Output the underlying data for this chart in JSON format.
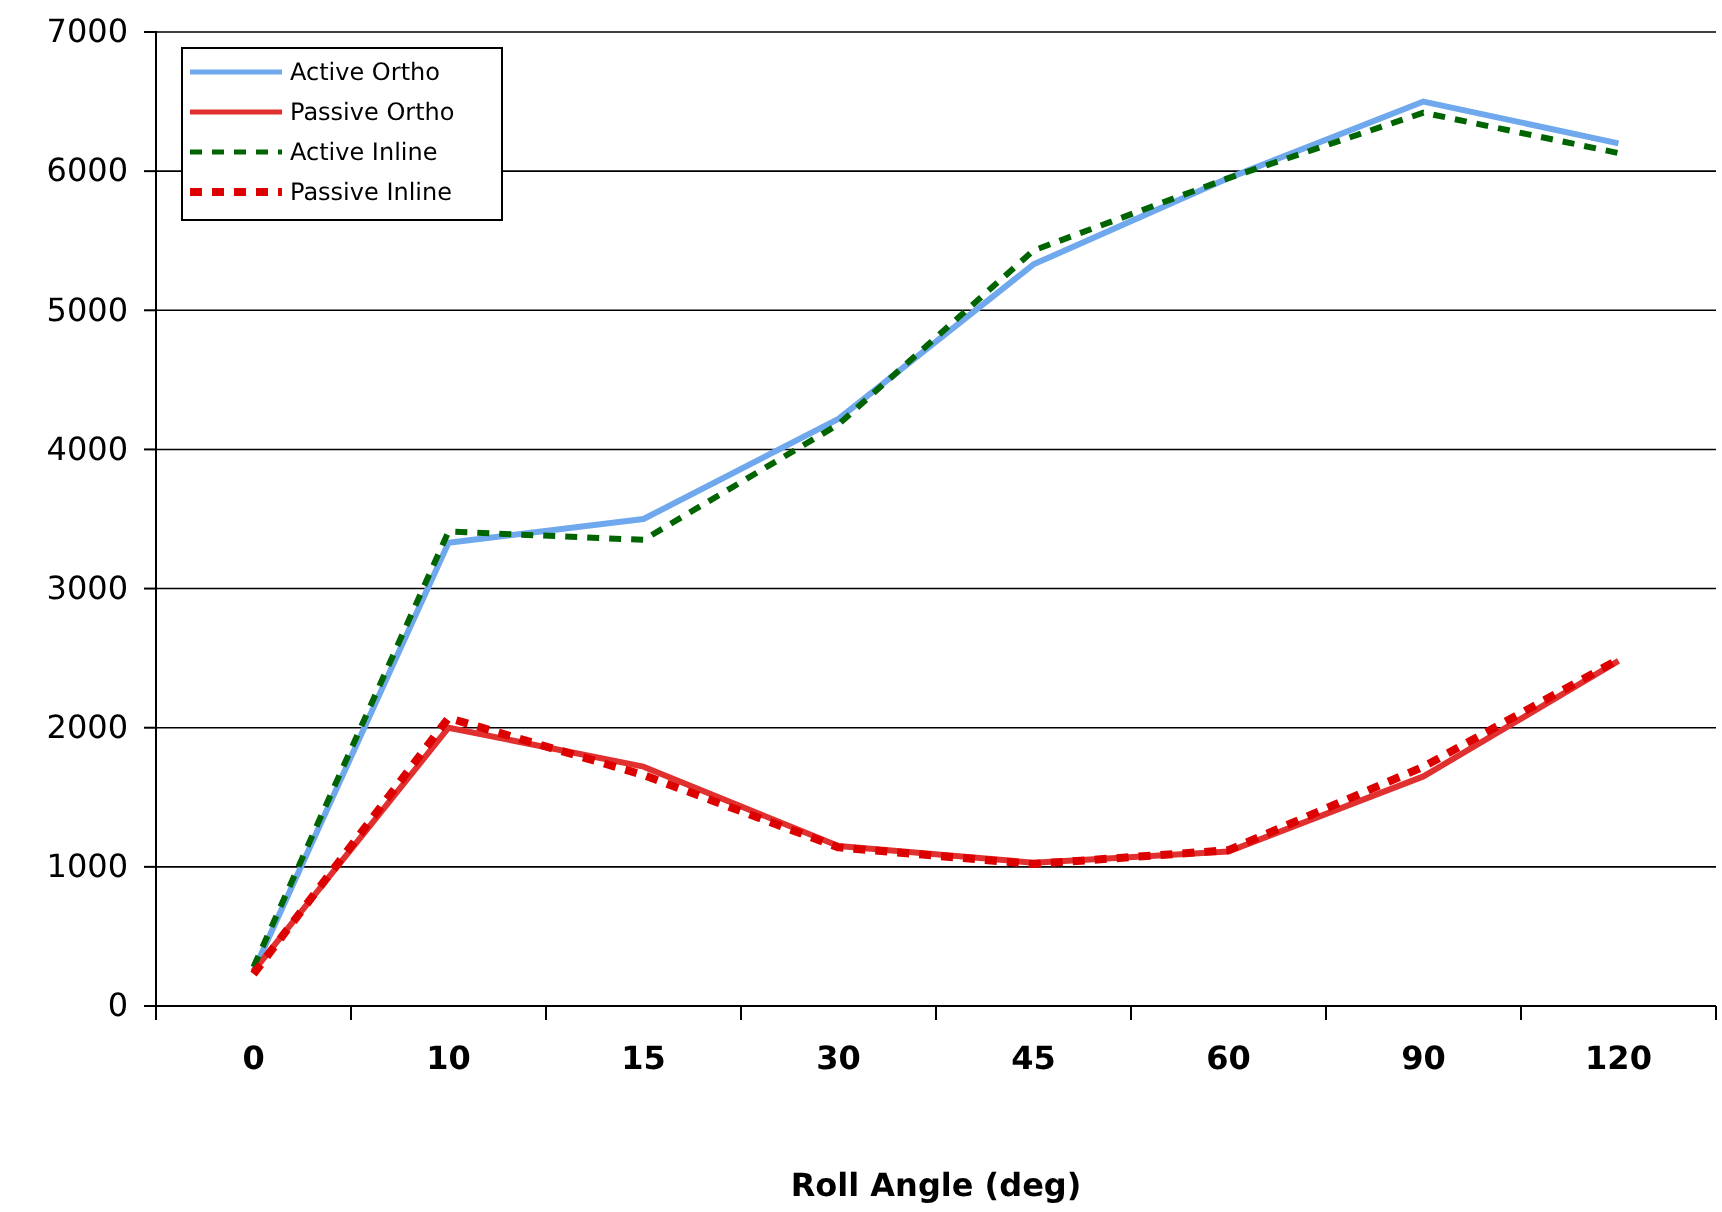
{
  "chart_data": {
    "type": "line",
    "xlabel": "Roll Angle (deg)",
    "categories": [
      "0",
      "10",
      "15",
      "30",
      "45",
      "60",
      "90",
      "120"
    ],
    "ylim": [
      0,
      7000
    ],
    "yticks": [
      0,
      1000,
      2000,
      3000,
      4000,
      5000,
      6000,
      7000
    ],
    "grid": "y",
    "legend": "top left",
    "series": [
      {
        "name": "Active Ortho",
        "color": "#6fa8ec",
        "line_style": "solid",
        "values": [
          250,
          3330,
          3500,
          4220,
          5330,
          5950,
          6500,
          6200
        ]
      },
      {
        "name": "Passive Ortho",
        "color": "#e03030",
        "line_style": "solid",
        "values": [
          250,
          2000,
          1720,
          1150,
          1030,
          1110,
          1650,
          2480
        ]
      },
      {
        "name": "Active Inline",
        "color": "#006400",
        "line_style": "dashed",
        "values": [
          280,
          3410,
          3350,
          4180,
          5430,
          5950,
          6420,
          6130
        ]
      },
      {
        "name": "Passive Inline",
        "color": "#dd0000",
        "line_style": "dashed",
        "values": [
          230,
          2070,
          1660,
          1140,
          1020,
          1120,
          1720,
          2490
        ]
      }
    ]
  }
}
